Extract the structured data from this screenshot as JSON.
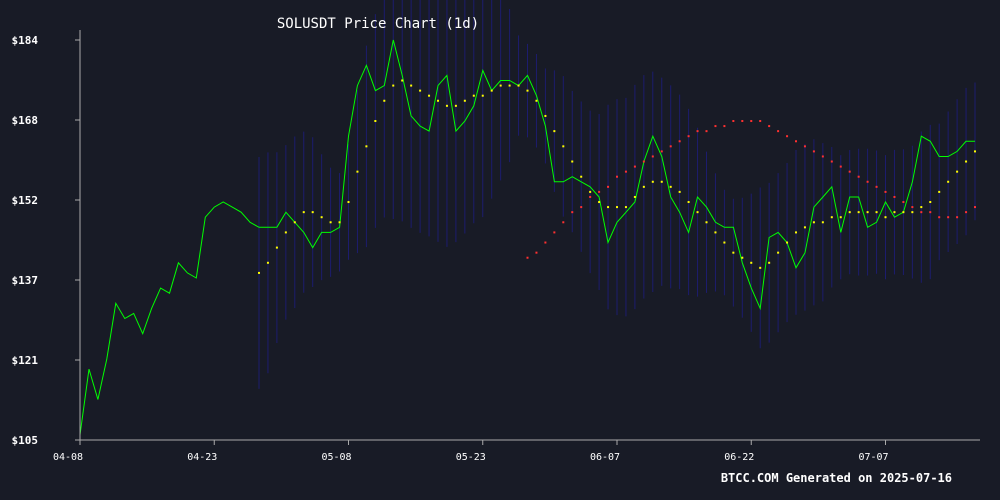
{
  "chart_data": {
    "type": "line",
    "title": "SOLUSDT Price Chart (1d)",
    "footer": "BTCC.COM Generated on 2025-07-16",
    "xlabel": "",
    "ylabel": "",
    "x_ticks": [
      "04-08",
      "04-23",
      "05-08",
      "05-23",
      "06-07",
      "06-22",
      "07-07"
    ],
    "y_ticks": [
      "$105",
      "$121",
      "$137",
      "$152",
      "$168",
      "$184"
    ],
    "ylim": [
      105,
      184
    ],
    "x_start": "2025-04-08",
    "grid": false,
    "colors": {
      "background": "#181b26",
      "price": "#00ff00",
      "ma20": "#ffff00",
      "ma50": "#ff3030",
      "bands": "#1c1c6e",
      "axis": "#aaaaaa",
      "text": "#ffffff"
    },
    "price": [
      106,
      119,
      113,
      121,
      132,
      129,
      130,
      126,
      131,
      135,
      134,
      140,
      138,
      137,
      149,
      151,
      152,
      151,
      150,
      148,
      147,
      147,
      147,
      150,
      148,
      146,
      143,
      146,
      146,
      147,
      165,
      175,
      179,
      174,
      175,
      184,
      177,
      169,
      167,
      166,
      175,
      177,
      166,
      168,
      171,
      178,
      174,
      176,
      176,
      175,
      177,
      173,
      167,
      156,
      156,
      157,
      156,
      155,
      153,
      144,
      148,
      150,
      152,
      160,
      165,
      161,
      153,
      150,
      146,
      153,
      151,
      148,
      147,
      147,
      140,
      135,
      131,
      145,
      146,
      144,
      139,
      142,
      151,
      153,
      155,
      146,
      153,
      153,
      147,
      148,
      152,
      149,
      150,
      156,
      165,
      164,
      161,
      161,
      162,
      164,
      164
    ],
    "ma20": [
      null,
      null,
      null,
      null,
      null,
      null,
      null,
      null,
      null,
      null,
      null,
      null,
      null,
      null,
      null,
      null,
      null,
      null,
      null,
      null,
      138,
      140,
      143,
      146,
      148,
      150,
      150,
      149,
      148,
      148,
      152,
      158,
      163,
      168,
      172,
      175,
      176,
      175,
      174,
      173,
      172,
      171,
      171,
      172,
      173,
      173,
      174,
      175,
      175,
      175,
      174,
      172,
      169,
      166,
      163,
      160,
      157,
      154,
      152,
      151,
      151,
      151,
      153,
      155,
      156,
      156,
      155,
      154,
      152,
      150,
      148,
      146,
      144,
      142,
      141,
      140,
      139,
      140,
      142,
      144,
      146,
      147,
      148,
      148,
      149,
      149,
      150,
      150,
      150,
      150,
      149,
      150,
      150,
      150,
      151,
      152,
      154,
      156,
      158,
      160,
      162
    ],
    "ma50": [
      null,
      null,
      null,
      null,
      null,
      null,
      null,
      null,
      null,
      null,
      null,
      null,
      null,
      null,
      null,
      null,
      null,
      null,
      null,
      null,
      null,
      null,
      null,
      null,
      null,
      null,
      null,
      null,
      null,
      null,
      null,
      null,
      null,
      null,
      null,
      null,
      null,
      null,
      null,
      null,
      null,
      null,
      null,
      null,
      null,
      null,
      null,
      null,
      null,
      null,
      141,
      142,
      144,
      146,
      148,
      150,
      151,
      153,
      154,
      155,
      157,
      158,
      159,
      160,
      161,
      162,
      163,
      164,
      165,
      166,
      166,
      167,
      167,
      168,
      168,
      168,
      168,
      167,
      166,
      165,
      164,
      163,
      162,
      161,
      160,
      159,
      158,
      157,
      156,
      155,
      154,
      153,
      152,
      151,
      150,
      150,
      149,
      149,
      149,
      150,
      151
    ]
  }
}
